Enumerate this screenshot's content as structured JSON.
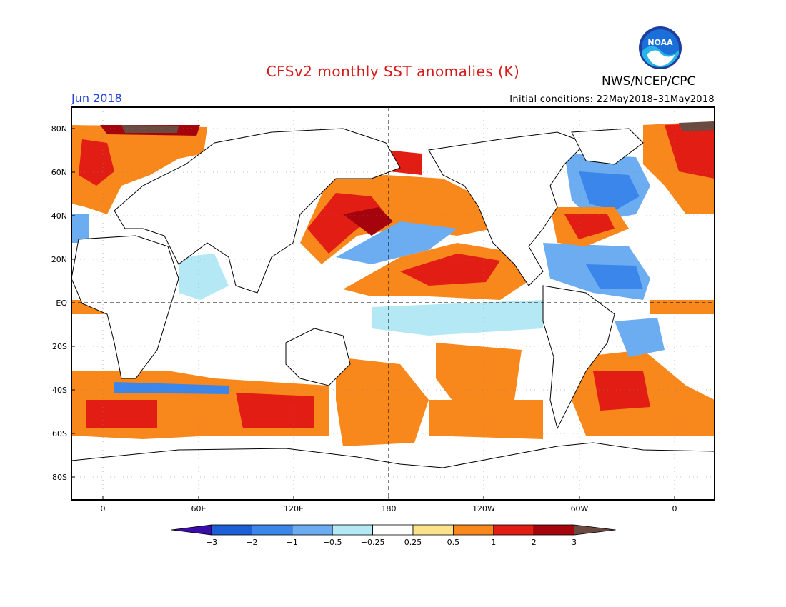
{
  "title": "CFSv2 monthly SST anomalies (K)",
  "agency": "NWS/NCEP/CPC",
  "logo_text": "NOAA",
  "month": "Jun 2018",
  "initial_conditions": "Initial conditions: 22May2018–31May2018",
  "lat_labels": [
    "80N",
    "60N",
    "40N",
    "20N",
    "EQ",
    "20S",
    "40S",
    "60S",
    "80S"
  ],
  "lon_labels": [
    "0",
    "60E",
    "120E",
    "180",
    "120W",
    "60W",
    "0"
  ],
  "colorbar": {
    "ticks": [
      "−3",
      "−2",
      "−1",
      "−0.5",
      "−0.25",
      "0.25",
      "0.5",
      "1",
      "2",
      "3"
    ],
    "colors": [
      "#3a0ca8",
      "#1b5fd6",
      "#3b86ea",
      "#6cadf2",
      "#b4e8f4",
      "#ffffff",
      "#fbe38c",
      "#f8871c",
      "#e11d14",
      "#a6040d",
      "#6b4a42"
    ]
  },
  "colors": {
    "land": "#ffffff",
    "warm": "#f8871c",
    "cool": "#6cadf2"
  }
}
